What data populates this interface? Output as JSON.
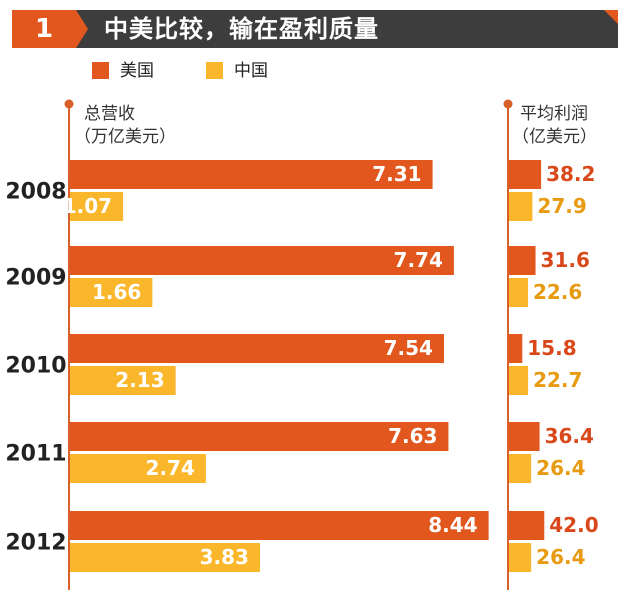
{
  "header": {
    "number": "1",
    "title": "中美比较，输在盈利质量"
  },
  "legend": [
    {
      "label": "美国",
      "color": "#e2571e"
    },
    {
      "label": "中国",
      "color": "#fbb72c"
    }
  ],
  "chart_data": [
    {
      "type": "bar",
      "title": "",
      "ylabel": "总营收（万亿美元）",
      "categories": [
        "2008",
        "2009",
        "2010",
        "2011",
        "2012"
      ],
      "series": [
        {
          "name": "美国",
          "color": "#e2571e",
          "values": [
            7.31,
            7.74,
            7.54,
            7.63,
            8.44
          ]
        },
        {
          "name": "中国",
          "color": "#fbb72c",
          "values": [
            1.07,
            1.66,
            2.13,
            2.74,
            3.83
          ]
        }
      ],
      "value_labels": {
        "美国": [
          "7.31",
          "7.74",
          "7.54",
          "7.63",
          "8.44"
        ],
        "中国": [
          "1.07",
          "1.66",
          "2.13",
          "2.74",
          "3.83"
        ]
      },
      "orientation": "horizontal",
      "xlim": [
        0,
        9
      ]
    },
    {
      "type": "bar",
      "title": "",
      "ylabel": "平均利润（亿美元）",
      "categories": [
        "2008",
        "2009",
        "2010",
        "2011",
        "2012"
      ],
      "series": [
        {
          "name": "美国",
          "color": "#e2571e",
          "values": [
            38.2,
            31.6,
            15.8,
            36.4,
            42.0
          ]
        },
        {
          "name": "中国",
          "color": "#fbb72c",
          "values": [
            27.9,
            22.6,
            22.7,
            26.4,
            26.4
          ]
        }
      ],
      "value_labels": {
        "美国": [
          "38.2",
          "31.6",
          "15.8",
          "36.4",
          "42.0"
        ],
        "中国": [
          "27.9",
          "22.6",
          "22.7",
          "26.4",
          "26.4"
        ]
      },
      "orientation": "horizontal",
      "xlim": [
        0,
        45
      ]
    }
  ],
  "column_headers": {
    "revenue_line1": "总营收",
    "revenue_line2": "（万亿美元）",
    "profit_line1": "平均利润",
    "profit_line2": "（亿美元）"
  },
  "colors": {
    "axis": "#d9602a",
    "label_text_us": "#ffffff",
    "label_text_cn": "#ffffff",
    "profit_label_us": "#d9481a",
    "profit_label_cn": "#e89a10"
  }
}
